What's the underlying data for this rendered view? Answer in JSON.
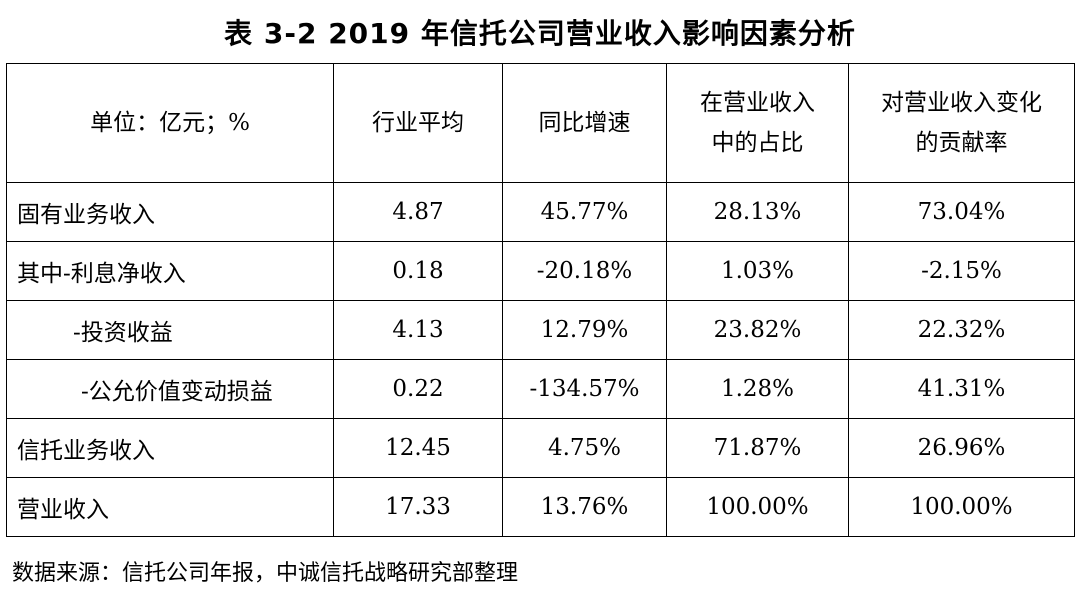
{
  "title": "表 3-2   2019 年信托公司营业收入影响因素分析",
  "table": {
    "headers": [
      [
        "单位：亿元；%"
      ],
      [
        "行业平均"
      ],
      [
        "同比增速"
      ],
      [
        "在营业收入",
        "中的占比"
      ],
      [
        "对营业收入变化",
        "的贡献率"
      ]
    ],
    "rows": [
      {
        "label": "固有业务收入",
        "values": [
          "4.87",
          "45.77%",
          "28.13%",
          "73.04%"
        ]
      },
      {
        "label": "其中-利息净收入",
        "values": [
          "0.18",
          "-20.18%",
          "1.03%",
          "-2.15%"
        ]
      },
      {
        "label": "-投资收益",
        "values": [
          "4.13",
          "12.79%",
          "23.82%",
          "22.32%"
        ]
      },
      {
        "label": "-公允价值变动损益",
        "values": [
          "0.22",
          "-134.57%",
          "1.28%",
          "41.31%"
        ]
      },
      {
        "label": "信托业务收入",
        "values": [
          "12.45",
          "4.75%",
          "71.87%",
          "26.96%"
        ]
      },
      {
        "label": "营业收入",
        "values": [
          "17.33",
          "13.76%",
          "100.00%",
          "100.00%"
        ]
      }
    ]
  },
  "source": "数据来源：信托公司年报，中诚信托战略研究部整理"
}
